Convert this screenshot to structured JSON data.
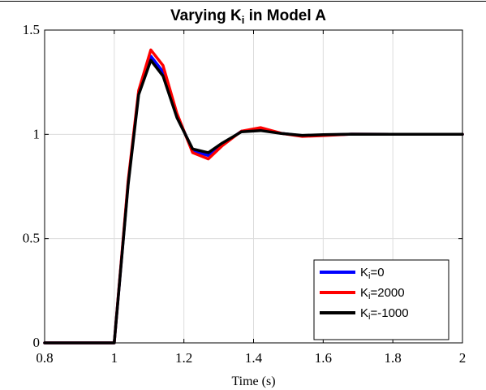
{
  "chart_data": {
    "type": "line",
    "title": {
      "prefix": "Varying  K",
      "sub": "i",
      "suffix": "  in  Model  A"
    },
    "xlabel": "Time (s)",
    "ylabel": "",
    "xlim": [
      0.8,
      2.0
    ],
    "ylim": [
      0,
      1.5
    ],
    "xticks": [
      "0.8",
      "1",
      "1.2",
      "1.4",
      "1.6",
      "1.8",
      "2"
    ],
    "yticks": [
      "0",
      "0.5",
      "1",
      "1.5"
    ],
    "grid": true,
    "legend_position": "bottom-right",
    "series": [
      {
        "name": "Ki=0",
        "legend": {
          "prefix": "K",
          "sub": "i",
          "suffix": "=0"
        },
        "color": "#0000ff",
        "points": [
          [
            0.8,
            0
          ],
          [
            1.0,
            0
          ],
          [
            1.04,
            0.77
          ],
          [
            1.07,
            1.2
          ],
          [
            1.105,
            1.375
          ],
          [
            1.14,
            1.3
          ],
          [
            1.18,
            1.09
          ],
          [
            1.225,
            0.922
          ],
          [
            1.27,
            0.898
          ],
          [
            1.31,
            0.95
          ],
          [
            1.365,
            1.015
          ],
          [
            1.42,
            1.022
          ],
          [
            1.48,
            1.005
          ],
          [
            1.54,
            0.993
          ],
          [
            1.6,
            0.996
          ],
          [
            1.68,
            1.001
          ],
          [
            1.8,
            1.0
          ],
          [
            2.0,
            1.0
          ]
        ]
      },
      {
        "name": "Ki=2000",
        "legend": {
          "prefix": "K",
          "sub": "i",
          "suffix": "=2000"
        },
        "color": "#ff0000",
        "points": [
          [
            0.8,
            0
          ],
          [
            1.0,
            0
          ],
          [
            1.04,
            0.78
          ],
          [
            1.07,
            1.21
          ],
          [
            1.105,
            1.405
          ],
          [
            1.14,
            1.33
          ],
          [
            1.18,
            1.1
          ],
          [
            1.225,
            0.912
          ],
          [
            1.27,
            0.882
          ],
          [
            1.31,
            0.945
          ],
          [
            1.365,
            1.015
          ],
          [
            1.42,
            1.032
          ],
          [
            1.48,
            1.005
          ],
          [
            1.54,
            0.99
          ],
          [
            1.6,
            0.994
          ],
          [
            1.68,
            1.001
          ],
          [
            1.8,
            1.0
          ],
          [
            2.0,
            1.0
          ]
        ]
      },
      {
        "name": "Ki=-1000",
        "legend": {
          "prefix": "K",
          "sub": "i",
          "suffix": "=-1000"
        },
        "color": "#000000",
        "points": [
          [
            0.8,
            0
          ],
          [
            1.0,
            0
          ],
          [
            1.04,
            0.76
          ],
          [
            1.07,
            1.19
          ],
          [
            1.105,
            1.355
          ],
          [
            1.14,
            1.28
          ],
          [
            1.18,
            1.08
          ],
          [
            1.225,
            0.93
          ],
          [
            1.27,
            0.912
          ],
          [
            1.31,
            0.958
          ],
          [
            1.365,
            1.012
          ],
          [
            1.42,
            1.018
          ],
          [
            1.48,
            1.004
          ],
          [
            1.54,
            0.995
          ],
          [
            1.6,
            0.998
          ],
          [
            1.68,
            1.001
          ],
          [
            1.8,
            1.0
          ],
          [
            2.0,
            1.0
          ]
        ]
      }
    ]
  }
}
